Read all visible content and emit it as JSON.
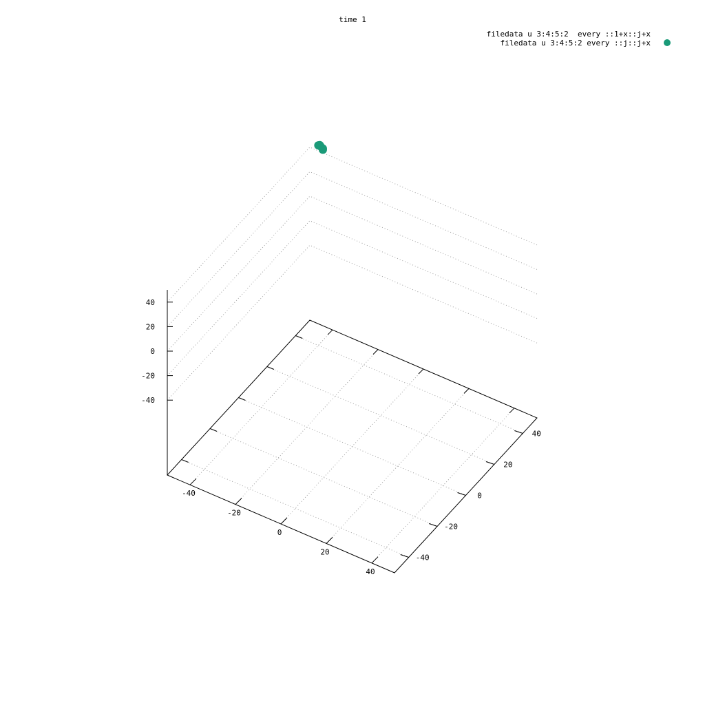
{
  "chart_data": {
    "type": "scatter",
    "view": "3d",
    "title": "time 1",
    "xlabel": "",
    "ylabel": "",
    "zlabel": "",
    "xlim": [
      -50,
      50
    ],
    "ylim": [
      -50,
      50
    ],
    "zlim": [
      -50,
      50
    ],
    "x_ticks": [
      -40,
      -20,
      0,
      20,
      40
    ],
    "y_ticks": [
      -40,
      -20,
      0,
      20,
      40
    ],
    "z_ticks": [
      -40,
      -20,
      0,
      20,
      40
    ],
    "grid": true,
    "legend_position": "top-right",
    "series": [
      {
        "name": "filedata u 3:4:5:2  every ::1+x::j+x",
        "marker": "none",
        "color": "",
        "points": []
      },
      {
        "name": "filedata u 3:4:5:2 every ::j::j+x",
        "marker": "circle",
        "color": "#1a9a78",
        "points": [
          {
            "x": -45,
            "y": 48,
            "z": 48
          },
          {
            "x": -45,
            "y": 49,
            "z": 47
          },
          {
            "x": -44,
            "y": 48,
            "z": 48
          },
          {
            "x": -43,
            "y": 48,
            "z": 47
          },
          {
            "x": -43,
            "y": 48,
            "z": 46
          }
        ]
      }
    ]
  }
}
